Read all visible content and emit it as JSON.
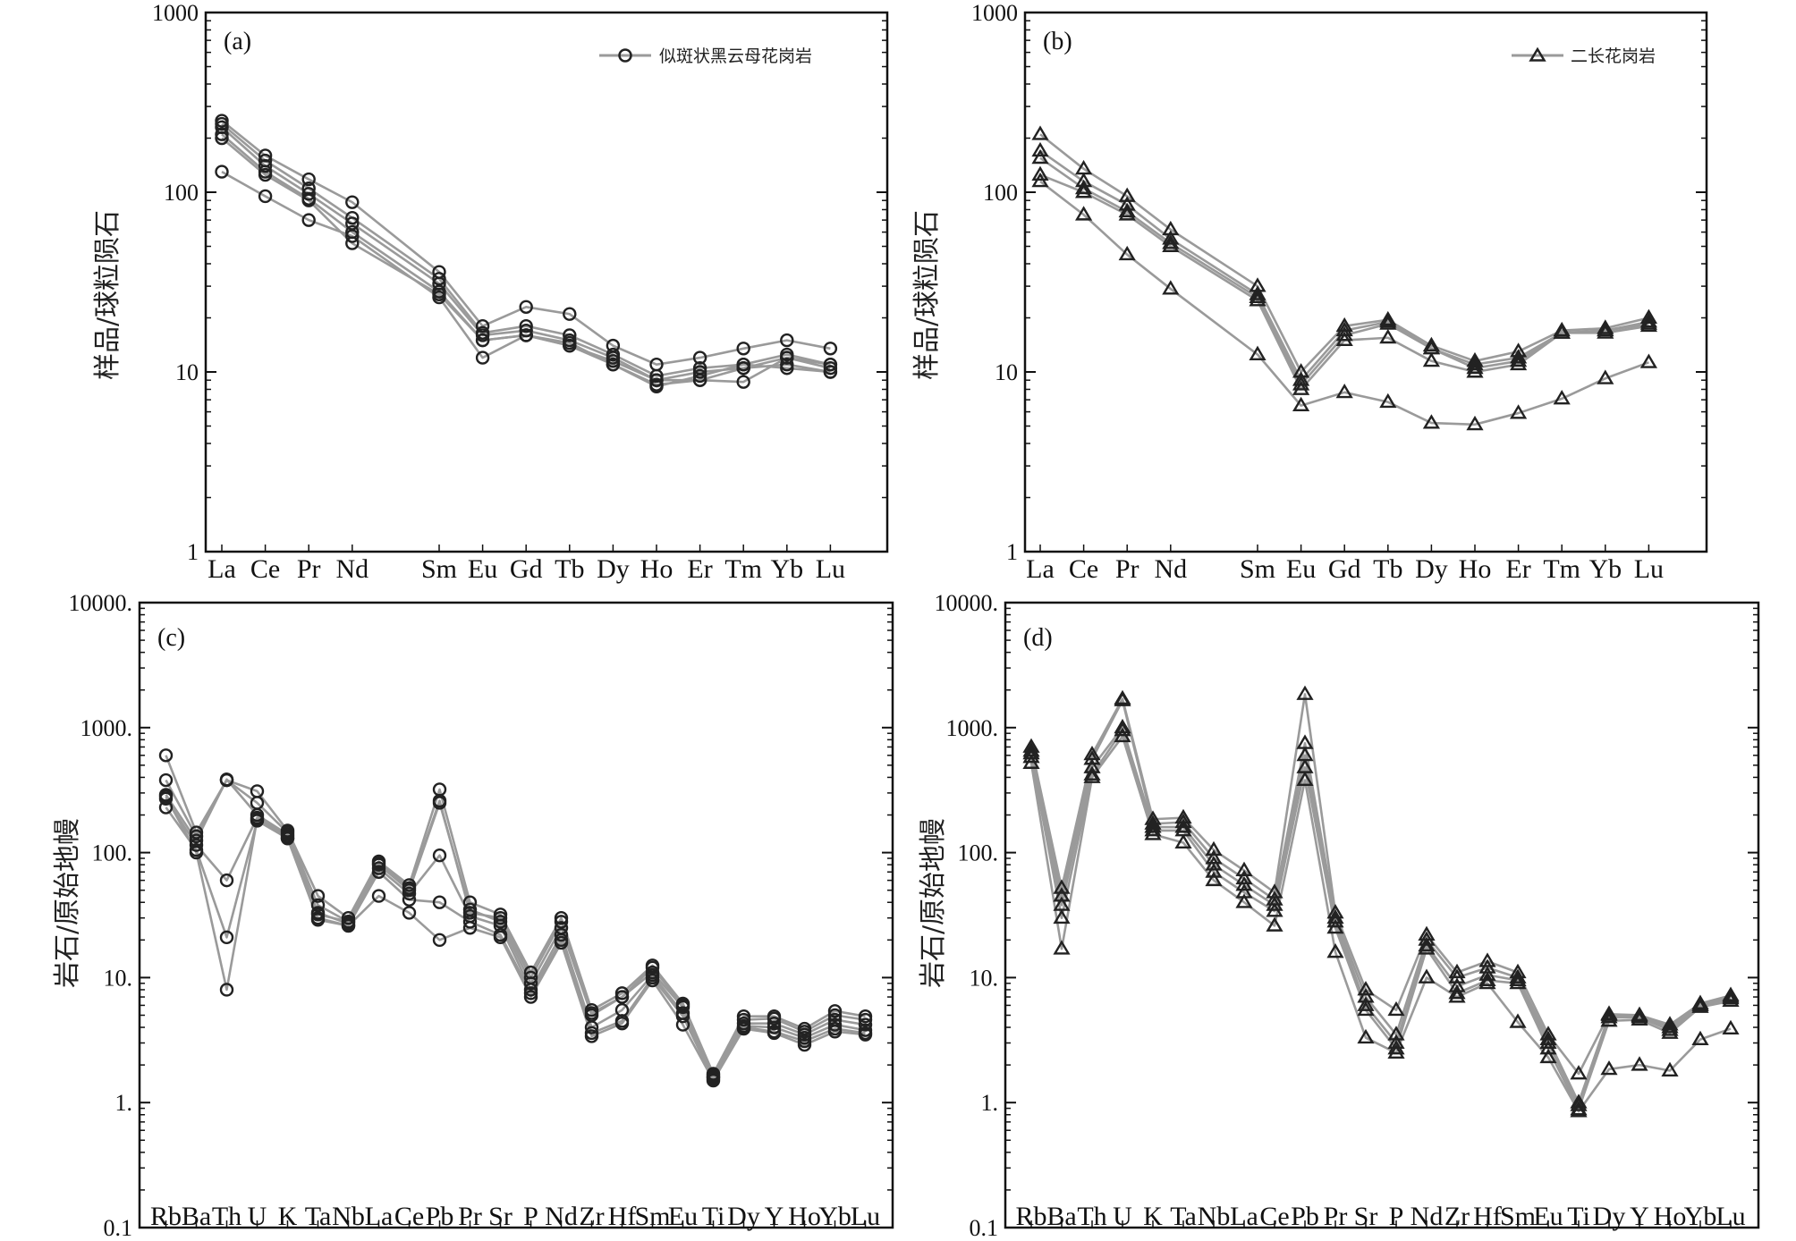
{
  "colors": {
    "line": "#9a9a9a",
    "marker": "#222222",
    "axis": "#111111"
  },
  "chart_data": [
    {
      "id": "a",
      "type": "line",
      "panel_label": "(a)",
      "ylabel": "样品/球粒陨石",
      "yscale": "log",
      "ylim": [
        1,
        1000
      ],
      "yticks": [
        1,
        10,
        100,
        1000
      ],
      "ytick_labels": [
        "1",
        "10",
        "100",
        "1000"
      ],
      "marker": "circle",
      "legend": "似斑状黑云母花岗岩",
      "legend_position": "top-right",
      "categories": [
        "La",
        "Ce",
        "Pr",
        "Nd",
        "Sm",
        "Eu",
        "Gd",
        "Tb",
        "Dy",
        "Ho",
        "Er",
        "Tm",
        "Yb",
        "Lu"
      ],
      "x": [
        1,
        2,
        3,
        4,
        6,
        7,
        8,
        9,
        10,
        11,
        12,
        13,
        14,
        15
      ],
      "series": [
        {
          "name": "a1",
          "values": [
            250,
            160,
            118,
            88,
            36,
            18,
            23,
            21,
            14,
            11,
            12,
            13.5,
            15,
            13.5
          ]
        },
        {
          "name": "a2",
          "values": [
            240,
            150,
            105,
            72,
            33,
            16.5,
            18,
            16,
            12.5,
            9.5,
            10.5,
            11,
            12.5,
            11
          ]
        },
        {
          "name": "a3",
          "values": [
            230,
            140,
            98,
            67,
            31,
            16,
            17,
            15,
            12,
            9,
            10,
            10.5,
            12,
            10.5
          ]
        },
        {
          "name": "a4",
          "values": [
            210,
            130,
            92,
            60,
            28,
            15,
            16,
            14,
            11,
            8.5,
            9,
            10.5,
            11,
            10
          ]
        },
        {
          "name": "a5",
          "values": [
            200,
            125,
            90,
            52,
            27,
            15,
            16,
            14.5,
            11,
            8.3,
            9.5,
            11,
            10.5,
            10
          ]
        },
        {
          "name": "a6",
          "values": [
            130,
            95,
            70,
            57,
            26,
            12,
            16,
            14,
            11.5,
            9,
            9,
            8.8,
            12,
            11
          ]
        }
      ]
    },
    {
      "id": "b",
      "type": "line",
      "panel_label": "(b)",
      "ylabel": "样品/球粒陨石",
      "yscale": "log",
      "ylim": [
        1,
        1000
      ],
      "yticks": [
        1,
        10,
        100,
        1000
      ],
      "ytick_labels": [
        "1",
        "10",
        "100",
        "1000"
      ],
      "marker": "triangle",
      "legend": "二长花岗岩",
      "legend_position": "top-right",
      "categories": [
        "La",
        "Ce",
        "Pr",
        "Nd",
        "Sm",
        "Eu",
        "Gd",
        "Tb",
        "Dy",
        "Ho",
        "Er",
        "Tm",
        "Yb",
        "Lu"
      ],
      "x": [
        1,
        2,
        3,
        4,
        6,
        7,
        8,
        9,
        10,
        11,
        12,
        13,
        14,
        15
      ],
      "series": [
        {
          "name": "b1",
          "values": [
            210,
            135,
            95,
            62,
            30,
            10,
            18,
            19.5,
            14,
            11.5,
            13,
            17,
            17.5,
            20
          ]
        },
        {
          "name": "b2",
          "values": [
            170,
            115,
            85,
            55,
            27,
            9,
            17,
            19,
            13.5,
            11,
            12,
            16.5,
            17,
            19
          ]
        },
        {
          "name": "b3",
          "values": [
            155,
            105,
            78,
            52,
            26,
            8.5,
            16,
            18.5,
            13.5,
            10.5,
            11.5,
            16.5,
            17,
            18.5
          ]
        },
        {
          "name": "b4",
          "values": [
            125,
            100,
            75,
            50,
            25,
            8,
            15,
            15.5,
            11.5,
            10,
            11,
            16.5,
            16.5,
            18
          ]
        },
        {
          "name": "b5",
          "values": [
            115,
            75,
            45,
            29,
            12.5,
            6.5,
            7.7,
            6.8,
            5.2,
            5.1,
            5.9,
            7.1,
            9.2,
            11.3
          ]
        }
      ]
    },
    {
      "id": "c",
      "type": "line",
      "panel_label": "(c)",
      "ylabel": "岩石/原始地幔",
      "yscale": "log",
      "ylim": [
        0.1,
        10000
      ],
      "yticks": [
        0.1,
        1,
        10,
        100,
        1000,
        10000
      ],
      "ytick_labels": [
        "0.1",
        "1.",
        "10.",
        "100.",
        "1000.",
        "10000."
      ],
      "marker": "circle",
      "categories": [
        "Rb",
        "Ba",
        "Th",
        "U",
        "K",
        "Ta",
        "Nb",
        "La",
        "Ce",
        "Pb",
        "Pr",
        "Sr",
        "P",
        "Nd",
        "Zr",
        "Hf",
        "Sm",
        "Eu",
        "Ti",
        "Dy",
        "Y",
        "Ho",
        "Yb",
        "Lu"
      ],
      "x": [
        1,
        2,
        3,
        4,
        5,
        6,
        7,
        8,
        9,
        10,
        11,
        12,
        13,
        14,
        15,
        16,
        17,
        18,
        19,
        20,
        21,
        22,
        23,
        24
      ],
      "series": [
        {
          "name": "c1",
          "values": [
            600,
            145,
            380,
            310,
            150,
            45,
            30,
            85,
            55,
            320,
            40,
            32,
            11,
            30,
            5.5,
            7.5,
            12.5,
            6.2,
            1.7,
            4.9,
            4.9,
            3.9,
            5.4,
            4.9
          ]
        },
        {
          "name": "c2",
          "values": [
            380,
            135,
            380,
            250,
            145,
            38,
            28,
            80,
            50,
            250,
            35,
            28,
            9,
            25,
            5,
            7,
            11,
            5.8,
            1.6,
            4.3,
            4.3,
            3.5,
            4.6,
            4.2
          ]
        },
        {
          "name": "c3",
          "values": [
            290,
            125,
            385,
            200,
            140,
            33,
            27,
            75,
            47,
            95,
            31,
            26,
            8,
            22,
            4,
            5.5,
            10.5,
            5.2,
            1.6,
            4.1,
            4,
            3.3,
            4.2,
            3.8
          ]
        },
        {
          "name": "c4",
          "values": [
            270,
            115,
            60,
            190,
            135,
            30,
            26,
            70,
            42,
            40,
            28,
            22,
            7.5,
            20,
            3.6,
            4.5,
            10,
            4.9,
            1.55,
            4,
            3.7,
            3.1,
            3.9,
            3.6
          ]
        },
        {
          "name": "c5",
          "values": [
            230,
            105,
            21,
            180,
            130,
            29,
            26,
            45,
            33,
            20,
            25,
            21,
            7,
            19,
            3.4,
            4.3,
            9.5,
            4.2,
            1.5,
            3.9,
            3.6,
            2.9,
            3.7,
            3.5
          ]
        },
        {
          "name": "c6",
          "values": [
            280,
            100,
            8,
            185,
            130,
            32,
            28,
            82,
            52,
            260,
            33,
            30,
            10,
            28,
            5.2,
            7,
            12,
            6,
            1.65,
            4.6,
            4.7,
            3.7,
            5,
            4.6
          ]
        }
      ]
    },
    {
      "id": "d",
      "type": "line",
      "panel_label": "(d)",
      "ylabel": "岩石/原始地幔",
      "yscale": "log",
      "ylim": [
        0.1,
        10000
      ],
      "yticks": [
        0.1,
        1,
        10,
        100,
        1000,
        10000
      ],
      "ytick_labels": [
        "0.1",
        "1.",
        "10.",
        "100.",
        "1000.",
        "10000."
      ],
      "marker": "triangle",
      "categories": [
        "Rb",
        "Ba",
        "Th",
        "U",
        "K",
        "Ta",
        "Nb",
        "La",
        "Ce",
        "Pb",
        "Pr",
        "Sr",
        "P",
        "Nd",
        "Zr",
        "Hf",
        "Sm",
        "Eu",
        "Ti",
        "Dy",
        "Y",
        "Ho",
        "Yb",
        "Lu"
      ],
      "x": [
        1,
        2,
        3,
        4,
        5,
        6,
        7,
        8,
        9,
        10,
        11,
        12,
        13,
        14,
        15,
        16,
        17,
        18,
        19,
        20,
        21,
        22,
        23,
        24
      ],
      "series": [
        {
          "name": "d1",
          "values": [
            700,
            52,
            610,
            1700,
            185,
            190,
            105,
            72,
            48,
            1850,
            33,
            8,
            5.5,
            22,
            11,
            13.5,
            11,
            3.5,
            1.7,
            5.1,
            5,
            4.2,
            6.2,
            7.2
          ]
        },
        {
          "name": "d2",
          "values": [
            650,
            45,
            560,
            1650,
            170,
            175,
            90,
            62,
            42,
            750,
            30,
            7,
            3.5,
            20,
            10,
            12,
            10,
            3.2,
            1,
            5,
            4.9,
            4,
            6,
            7
          ]
        },
        {
          "name": "d3",
          "values": [
            620,
            38,
            480,
            1000,
            160,
            160,
            80,
            55,
            38,
            600,
            28,
            6,
            3,
            18,
            8.5,
            10.5,
            9.5,
            3,
            0.95,
            4.8,
            4.8,
            3.8,
            6,
            6.8
          ]
        },
        {
          "name": "d4",
          "values": [
            580,
            30,
            420,
            950,
            150,
            150,
            70,
            48,
            34,
            480,
            25,
            5.5,
            2.7,
            17,
            7.5,
            9.5,
            9,
            2.7,
            0.88,
            4.5,
            4.6,
            3.6,
            5.8,
            6.5
          ]
        },
        {
          "name": "d5",
          "values": [
            520,
            17,
            400,
            850,
            140,
            120,
            60,
            40,
            26,
            380,
            16,
            3.3,
            2.5,
            10,
            7,
            9,
            4.4,
            2.3,
            0.85,
            1.85,
            2,
            1.8,
            3.2,
            3.9
          ]
        }
      ]
    }
  ]
}
